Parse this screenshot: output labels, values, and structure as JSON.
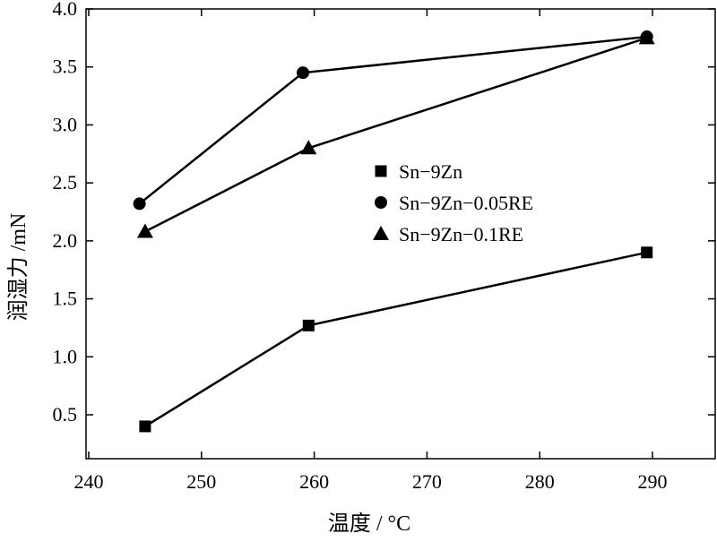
{
  "chart_data": {
    "type": "line",
    "title": "",
    "xlabel": "温度 / °C",
    "ylabel": "润湿力 /mN",
    "xlim": [
      240,
      295
    ],
    "ylim": [
      0,
      4.0
    ],
    "xticks": [
      240,
      250,
      260,
      270,
      280,
      290
    ],
    "xtick_labels": [
      "240",
      "250",
      "260",
      "270",
      "280",
      "290"
    ],
    "yticks": [
      0.5,
      1.0,
      1.5,
      2.0,
      2.5,
      3.0,
      3.5,
      4.0
    ],
    "ytick_labels": [
      "0.5",
      "1.0",
      "1.5",
      "2.0",
      "2.5",
      "3.0",
      "3.5",
      "4.0"
    ],
    "grid": false,
    "legend_position": "center-right",
    "series": [
      {
        "name": "Sn−9Zn",
        "marker": "square",
        "color": "#000000",
        "x": [
          245,
          259.5,
          289.5
        ],
        "y": [
          0.4,
          1.27,
          1.9
        ]
      },
      {
        "name": "Sn−9Zn−0.05RE",
        "marker": "circle",
        "color": "#000000",
        "x": [
          244.5,
          259,
          289.5
        ],
        "y": [
          2.32,
          3.45,
          3.76
        ]
      },
      {
        "name": "Sn−9Zn−0.1RE",
        "marker": "triangle",
        "color": "#000000",
        "x": [
          245,
          259.5,
          289.5
        ],
        "y": [
          2.08,
          2.8,
          3.75
        ]
      }
    ]
  }
}
